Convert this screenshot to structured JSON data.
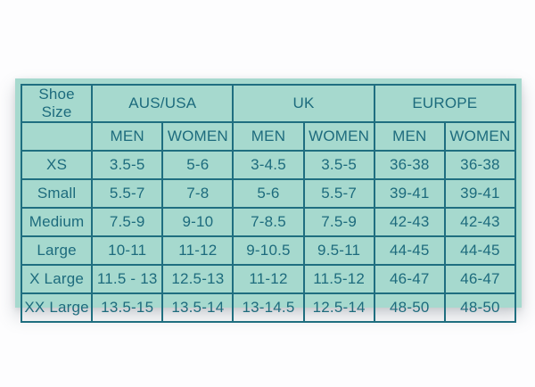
{
  "page": {
    "background": "#fdfdfe"
  },
  "chart": {
    "panel_bg": "#a6d9ce",
    "border_color": "#1f6e80",
    "text_color": "#1d6b7d",
    "corner_header": "Shoe Size",
    "region_headers": {
      "aus_usa": "AUS/USA",
      "uk": "UK",
      "europe": "EUROPE"
    },
    "gender_headers": {
      "men_1": "MEN",
      "women_1": "WOMEN",
      "men_2": "MEN",
      "women_2": "WOMEN",
      "men_3": "MEN",
      "women_3": "WOMEN"
    },
    "rows": [
      {
        "label": "XS",
        "values": [
          "3.5-5",
          "5-6",
          "3-4.5",
          "3.5-5",
          "36-38",
          "36-38"
        ]
      },
      {
        "label": "Small",
        "values": [
          "5.5-7",
          "7-8",
          "5-6",
          "5.5-7",
          "39-41",
          "39-41"
        ]
      },
      {
        "label": "Medium",
        "values": [
          "7.5-9",
          "9-10",
          "7-8.5",
          "7.5-9",
          "42-43",
          "42-43"
        ]
      },
      {
        "label": "Large",
        "values": [
          "10-11",
          "11-12",
          "9-10.5",
          "9.5-11",
          "44-45",
          "44-45"
        ]
      },
      {
        "label": "X Large",
        "values": [
          "11.5 - 13",
          "12.5-13",
          "11-12",
          "11.5-12",
          "46-47",
          "46-47"
        ]
      },
      {
        "label": "XX Large",
        "values": [
          "13.5-15",
          "13.5-14",
          "13-14.5",
          "12.5-14",
          "48-50",
          "48-50"
        ]
      }
    ]
  }
}
